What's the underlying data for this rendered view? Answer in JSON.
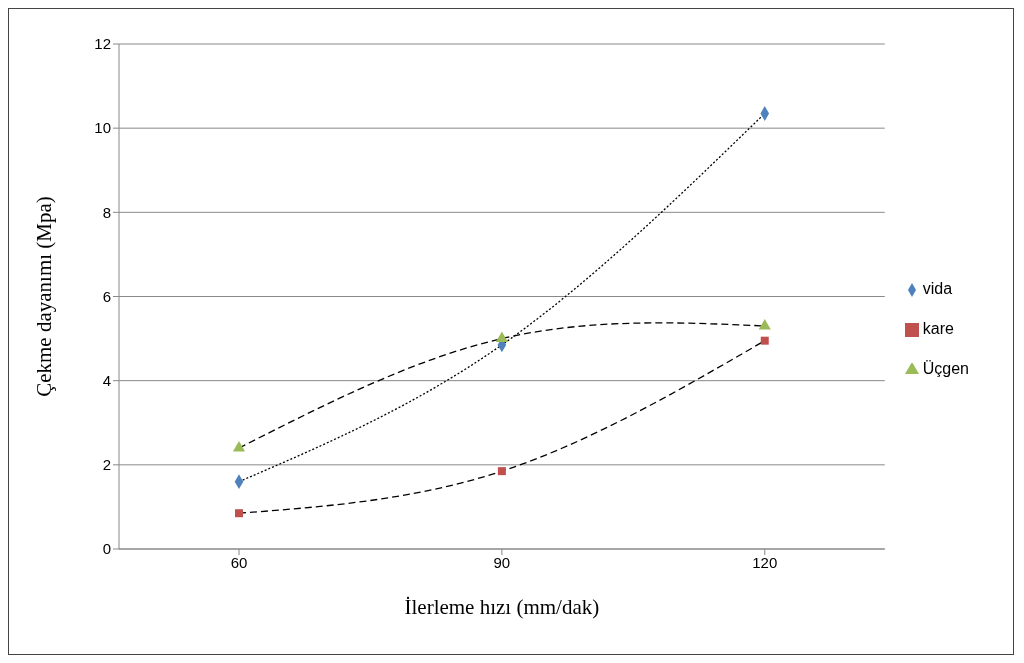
{
  "chart_data": {
    "type": "scatter",
    "xlabel": "İlerleme hızı (mm/dak)",
    "ylabel": "Çekme dayanımı (Mpa)",
    "categories": [
      "60",
      "90",
      "120"
    ],
    "series": [
      {
        "name": "vida",
        "color": "#4f81bd",
        "marker": "diamond",
        "values": [
          1.6,
          4.85,
          10.35
        ]
      },
      {
        "name": "kare",
        "color": "#c0504d",
        "marker": "square",
        "values": [
          0.85,
          1.85,
          4.95
        ]
      },
      {
        "name": "Üçgen",
        "color": "#9bbb59",
        "marker": "triangle",
        "values": [
          2.4,
          5.0,
          5.3
        ]
      },
      {
        "type": "line",
        "color": "#000000",
        "line_style": "dotted",
        "marker": "none",
        "values": [
          1.6,
          4.85,
          10.35
        ]
      },
      {
        "type": "line",
        "color": "#000000",
        "line_style": "dashed",
        "marker": "none",
        "values": [
          0.85,
          1.85,
          4.95
        ]
      },
      {
        "type": "line",
        "color": "#000000",
        "line_style": "dashed",
        "marker": "none",
        "values": [
          2.4,
          5.0,
          5.3
        ]
      }
    ],
    "ylim": [
      0,
      12
    ],
    "yticks": [
      0,
      2,
      4,
      6,
      8,
      10,
      12
    ],
    "grid": "y",
    "legend": "right"
  }
}
